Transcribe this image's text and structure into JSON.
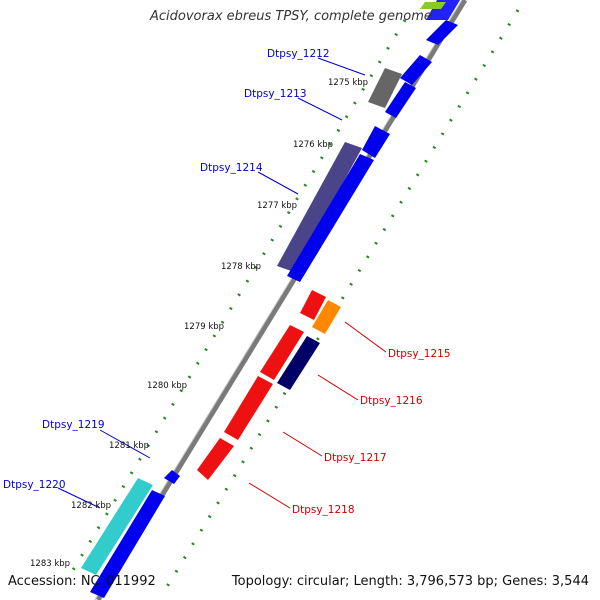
{
  "title": "Acidovorax ebreus TPSY, complete genome",
  "footer": {
    "accession": "Accession: NC_011992",
    "summary": "Topology: circular; Length: 3,796,573 bp; Genes: 3,544"
  },
  "ticks": [
    "1275 kbp",
    "1276 kbp",
    "1277 kbp",
    "1278 kbp",
    "1279 kbp",
    "1280 kbp",
    "1281 kbp",
    "1282 kbp",
    "1283 kbp"
  ],
  "gene_labels_forward": [
    "Dtpsy_1212",
    "Dtpsy_1213",
    "Dtpsy_1214",
    "Dtpsy_1219",
    "Dtpsy_1220"
  ],
  "gene_labels_reverse": [
    "Dtpsy_1215",
    "Dtpsy_1216",
    "Dtpsy_1217",
    "Dtpsy_1218"
  ],
  "colors": {
    "forward_label": "#0000cc",
    "reverse_label": "#cc0000",
    "backbone": "#888888",
    "blue": "#0000ee",
    "red": "#ee0000",
    "slate": "#4a4488",
    "grey": "#666666",
    "navy": "#000066",
    "orange": "#ff8800",
    "cyan": "#33cccc",
    "tick_dots": "#228822"
  }
}
